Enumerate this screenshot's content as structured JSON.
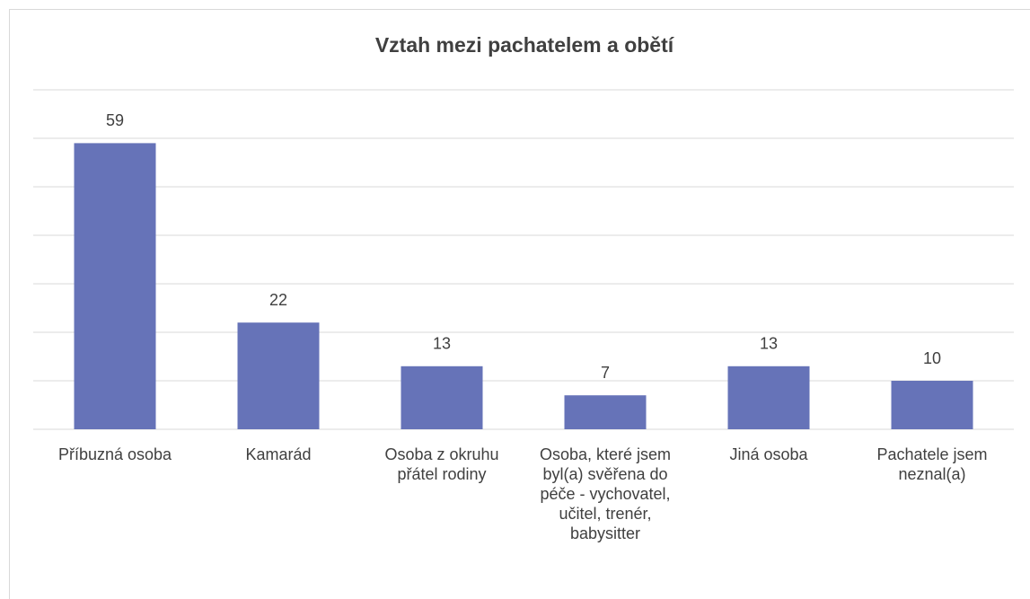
{
  "chart_data": {
    "type": "bar",
    "title": "Vztah mezi pachatelem a obětí",
    "categories": [
      "Příbuzná osoba",
      "Kamarád",
      "Osoba z okruhu přátel rodiny",
      "Osoba, které jsem byl(a) svěřena do péče - vychovatel, učitel, trenér, babysitter",
      "Jiná osoba",
      "Pachatele jsem neznal(a)"
    ],
    "values": [
      59,
      22,
      13,
      7,
      13,
      10
    ],
    "color": "#6673b8",
    "ylim": [
      0,
      70
    ],
    "yticks": [
      0,
      10,
      20,
      30,
      40,
      50,
      60,
      70
    ],
    "grid": true
  }
}
